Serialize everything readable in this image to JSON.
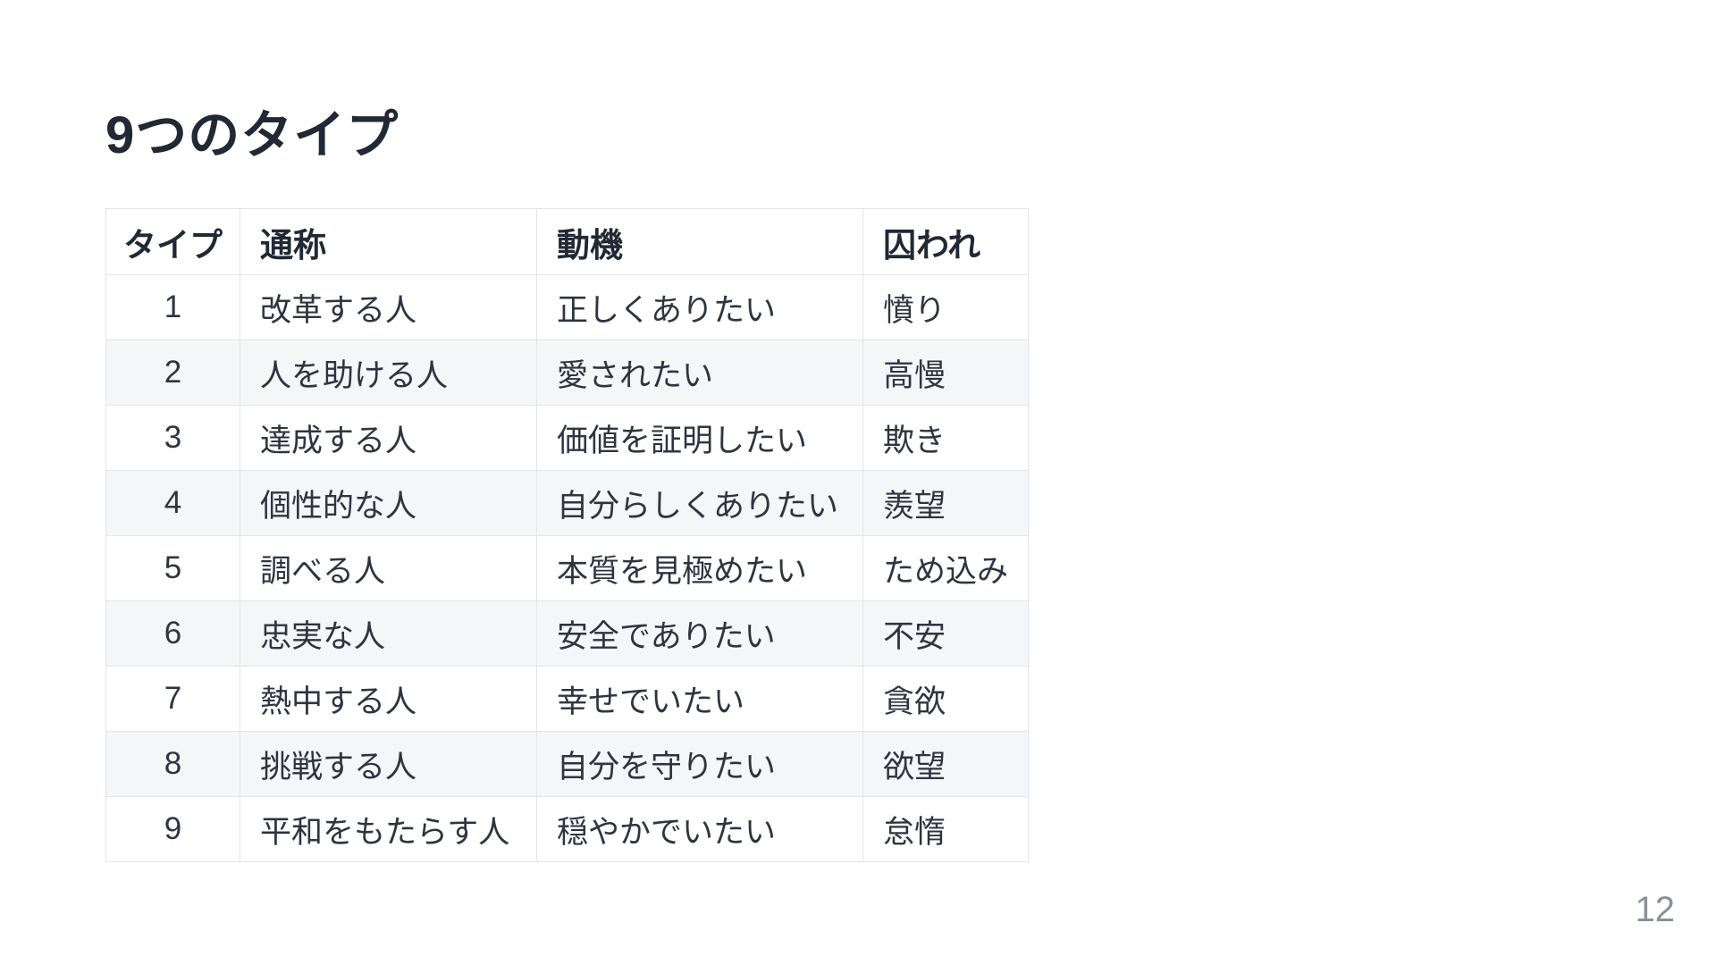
{
  "page": {
    "title": "9つのタイプ",
    "page_number": "12"
  },
  "table": {
    "headers": [
      "タイプ",
      "通称",
      "動機",
      "囚われ"
    ],
    "rows": [
      [
        "1",
        "改革する人",
        "正しくありたい",
        "憤り"
      ],
      [
        "2",
        "人を助ける人",
        "愛されたい",
        "高慢"
      ],
      [
        "3",
        "達成する人",
        "価値を証明したい",
        "欺き"
      ],
      [
        "4",
        "個性的な人",
        "自分らしくありたい",
        "羨望"
      ],
      [
        "5",
        "調べる人",
        "本質を見極めたい",
        "ため込み"
      ],
      [
        "6",
        "忠実な人",
        "安全でありたい",
        "不安"
      ],
      [
        "7",
        "熱中する人",
        "幸せでいたい",
        "貪欲"
      ],
      [
        "8",
        "挑戦する人",
        "自分を守りたい",
        "欲望"
      ],
      [
        "9",
        "平和をもたらす人",
        "穏やかでいたい",
        "怠惰"
      ]
    ]
  },
  "colors": {
    "text": "#2e3540",
    "title": "#212934",
    "border": "#e2e5ea",
    "stripe": "#f4f6f8",
    "muted": "#8b9199",
    "bg": "#ffffff"
  }
}
